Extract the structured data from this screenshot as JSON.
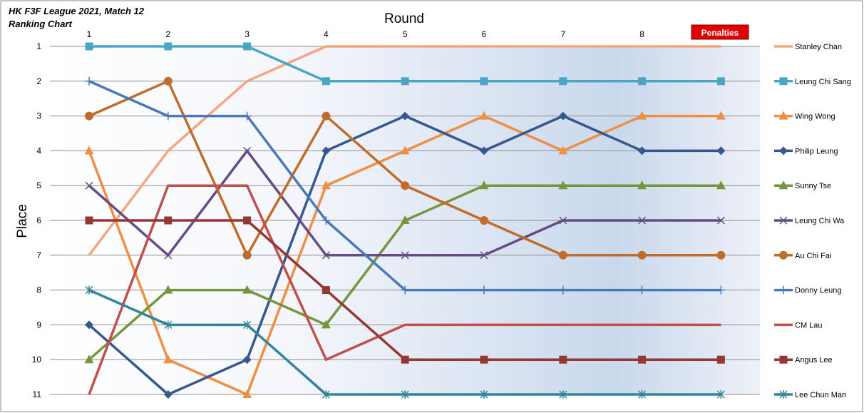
{
  "chart_data": {
    "type": "line",
    "title": "HK F3F League 2021, Match 12",
    "subtitle": "Ranking Chart",
    "xlabel": "Round",
    "ylabel": "Place",
    "categories": [
      "1",
      "2",
      "3",
      "4",
      "5",
      "6",
      "7",
      "8",
      ""
    ],
    "penalties_label": "Penalties",
    "yticks": [
      "1",
      "2",
      "3",
      "4",
      "5",
      "6",
      "7",
      "8",
      "9",
      "10",
      "11"
    ],
    "ylim": [
      1,
      11
    ],
    "y_inverted": true,
    "grid": true,
    "legend_position": "right",
    "series": [
      {
        "name": "Stanley Chan",
        "color": "#f4a77e",
        "marker": "none",
        "values": [
          7,
          4,
          2,
          1,
          1,
          1,
          1,
          1,
          1
        ]
      },
      {
        "name": "Leung Chi Sang",
        "color": "#4aa7c4",
        "marker": "square",
        "values": [
          1,
          1,
          1,
          2,
          2,
          2,
          2,
          2,
          2
        ]
      },
      {
        "name": "Wing Wong",
        "color": "#ee8f46",
        "marker": "triangle",
        "values": [
          4,
          10,
          11,
          5,
          4,
          3,
          4,
          3,
          3
        ]
      },
      {
        "name": "Philip Leung",
        "color": "#36578f",
        "marker": "diamond",
        "values": [
          9,
          11,
          10,
          4,
          3,
          4,
          3,
          4,
          4
        ]
      },
      {
        "name": "Sunny Tse",
        "color": "#76963e",
        "marker": "triangle",
        "values": [
          10,
          8,
          8,
          9,
          6,
          5,
          5,
          5,
          5
        ]
      },
      {
        "name": "Leung Chi Wa",
        "color": "#664b87",
        "marker": "x",
        "values": [
          5,
          7,
          4,
          7,
          7,
          7,
          6,
          6,
          6
        ]
      },
      {
        "name": "Au Chi Fai",
        "color": "#c06d2b",
        "marker": "circle",
        "values": [
          3,
          2,
          7,
          3,
          5,
          6,
          7,
          7,
          7
        ]
      },
      {
        "name": "Donny Leung",
        "color": "#4a79b8",
        "marker": "plus",
        "values": [
          2,
          3,
          3,
          6,
          8,
          8,
          8,
          8,
          8
        ]
      },
      {
        "name": "CM Lau",
        "color": "#c0504d",
        "marker": "none",
        "values": [
          11,
          5,
          5,
          10,
          9,
          9,
          9,
          9,
          9
        ]
      },
      {
        "name": "Angus Lee",
        "color": "#953735",
        "marker": "square",
        "values": [
          6,
          6,
          6,
          8,
          10,
          10,
          10,
          10,
          10
        ]
      },
      {
        "name": "Lee Chun Man",
        "color": "#31859c",
        "marker": "star",
        "values": [
          8,
          9,
          9,
          11,
          11,
          11,
          11,
          11,
          11
        ]
      }
    ]
  }
}
